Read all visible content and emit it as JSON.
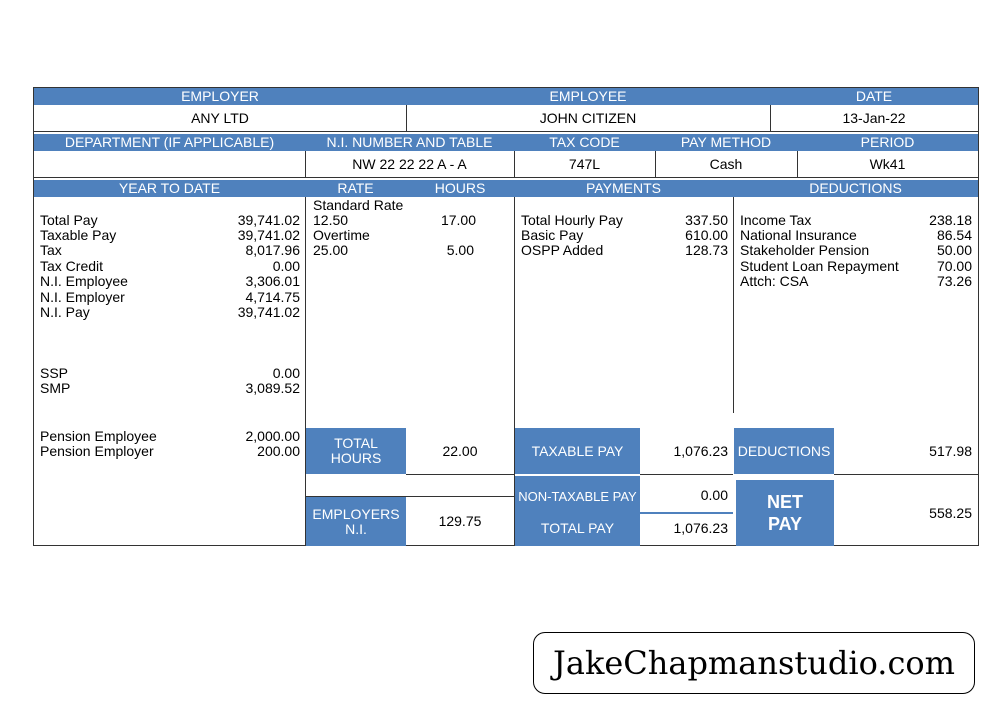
{
  "header_row1": {
    "employer_label": "EMPLOYER",
    "employee_label": "EMPLOYEE",
    "date_label": "DATE",
    "employer": "ANY LTD",
    "employee": "JOHN CITIZEN",
    "date": "13-Jan-22"
  },
  "header_row2": {
    "department_label": "DEPARTMENT (IF APPLICABLE)",
    "ni_label": "N.I. NUMBER AND TABLE",
    "taxcode_label": "TAX CODE",
    "paymethod_label": "PAY METHOD",
    "period_label": "PERIOD",
    "department": "",
    "ni": "NW 22 22 22 A - A",
    "taxcode": "747L",
    "paymethod": "Cash",
    "period": "Wk41"
  },
  "header_row3": {
    "ytd_label": "YEAR TO DATE",
    "rate_label": "RATE",
    "hours_label": "HOURS",
    "payments_label": "PAYMENTS",
    "deductions_label": "DEDUCTIONS"
  },
  "ytd": [
    {
      "label": "Total Pay",
      "value": "39,741.02"
    },
    {
      "label": "Taxable Pay",
      "value": "39,741.02"
    },
    {
      "label": "Tax",
      "value": "8,017.96"
    },
    {
      "label": "Tax Credit",
      "value": "0.00"
    },
    {
      "label": "N.I. Employee",
      "value": "3,306.01"
    },
    {
      "label": "N.I. Employer",
      "value": "4,714.75"
    },
    {
      "label": "N.I. Pay",
      "value": "39,741.02"
    }
  ],
  "ytd_ss": [
    {
      "label": "SSP",
      "value": "0.00"
    },
    {
      "label": "SMP",
      "value": "3,089.52"
    }
  ],
  "ytd_pension": [
    {
      "label": "Pension Employee",
      "value": "2,000.00"
    },
    {
      "label": "Pension Employer",
      "value": "200.00"
    }
  ],
  "rates": {
    "standard_label": "Standard Rate",
    "standard_rate": "12.50",
    "standard_hours": "17.00",
    "overtime_label": "Overtime",
    "overtime_rate": "25.00",
    "overtime_hours": "5.00"
  },
  "payments": [
    {
      "label": "Total Hourly Pay",
      "value": "337.50"
    },
    {
      "label": "Basic Pay",
      "value": "610.00"
    },
    {
      "label": "OSPP Added",
      "value": "128.73"
    }
  ],
  "deductions": [
    {
      "label": "Income Tax",
      "value": "238.18"
    },
    {
      "label": "National Insurance",
      "value": "86.54"
    },
    {
      "label": "Stakeholder Pension",
      "value": "50.00"
    },
    {
      "label": "Student Loan Repayment",
      "value": "70.00"
    },
    {
      "label": "Attch: CSA",
      "value": "73.26"
    }
  ],
  "totals": {
    "total_hours_label": "TOTAL HOURS",
    "total_hours": "22.00",
    "employers_ni_label": "EMPLOYERS N.I.",
    "employers_ni": "129.75",
    "taxable_pay_label": "TAXABLE PAY",
    "taxable_pay": "1,076.23",
    "non_taxable_pay_label": "NON-TAXABLE PAY",
    "non_taxable_pay": "0.00",
    "total_pay_label": "TOTAL PAY",
    "total_pay": "1,076.23",
    "deductions_label": "DEDUCTIONS",
    "deductions": "517.98",
    "net_pay_label": "NET PAY",
    "net_pay": "558.25"
  },
  "watermark": "JakeChapmanstudio.com",
  "colors": {
    "accent": "#4f81bd"
  }
}
